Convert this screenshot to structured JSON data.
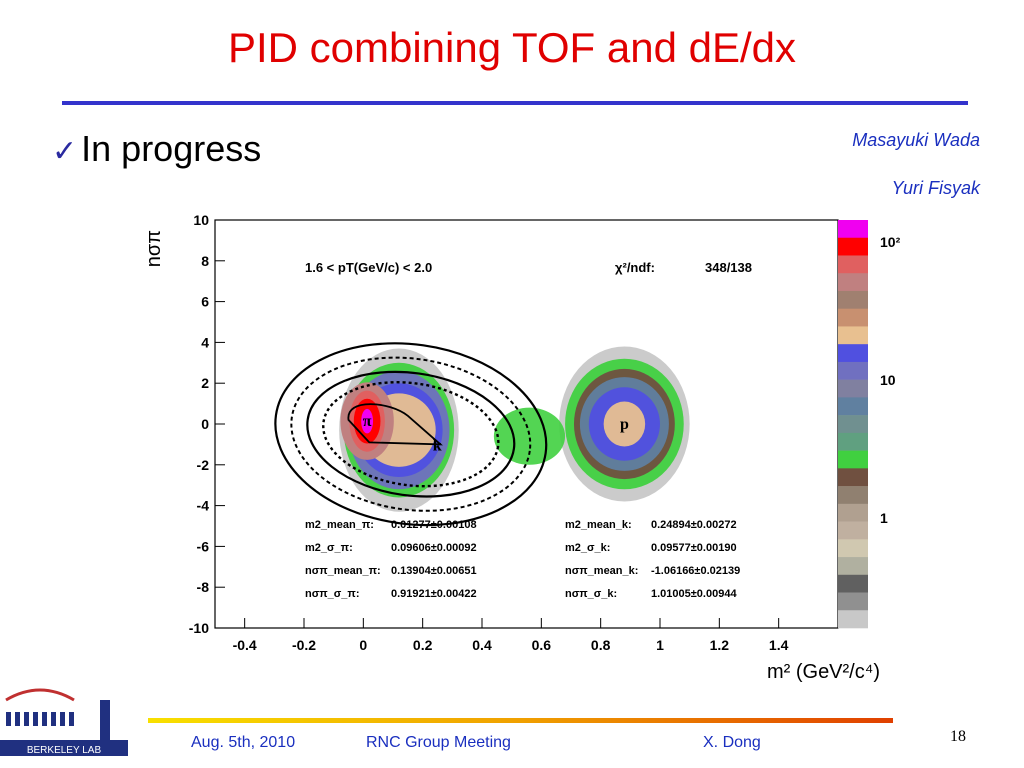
{
  "title": "PID combining TOF and dE/dx",
  "bullet": {
    "check": "✓",
    "text": "In progress"
  },
  "authors": [
    "Masayuki Wada",
    "Yuri Fisyak"
  ],
  "footer": {
    "date": "Aug. 5th, 2010",
    "meeting": "RNC Group Meeting",
    "author": "X. Dong",
    "page": "18"
  },
  "logo_text": "BERKELEY LAB",
  "chart_data": {
    "type": "heatmap",
    "title": "",
    "xlabel": "m² (GeV²/c⁴)",
    "ylabel": "nσπ",
    "xlim": [
      -0.5,
      1.6
    ],
    "ylim": [
      -10,
      10
    ],
    "x_ticks": [
      "-0.4",
      "-0.2",
      "0",
      "0.2",
      "0.4",
      "0.6",
      "0.8",
      "1",
      "1.2",
      "1.4"
    ],
    "x_tick_values": [
      -0.4,
      -0.2,
      0,
      0.2,
      0.4,
      0.6,
      0.8,
      1,
      1.2,
      1.4
    ],
    "y_ticks": [
      "10",
      "8",
      "6",
      "4",
      "2",
      "0",
      "-2",
      "-4",
      "-6",
      "-8",
      "-10"
    ],
    "y_tick_values": [
      10,
      8,
      6,
      4,
      2,
      0,
      -2,
      -4,
      -6,
      -8,
      -10
    ],
    "colorbar_labels": [
      "10²",
      "10",
      "1"
    ],
    "range_label": "1.6 < pT(GeV/c) < 2.0",
    "chi2_label": "χ²/ndf:",
    "chi2_value": "348/138",
    "peaks": [
      {
        "label": "π",
        "x": 0.01277,
        "y": 0.13904
      },
      {
        "label": "k",
        "x": 0.24894,
        "y": -1.06166
      },
      {
        "label": "p",
        "x": 0.88,
        "y": 0.0
      }
    ],
    "fit_params": [
      {
        "name": "m2_mean_π:",
        "value": "0.01277±0.00108"
      },
      {
        "name": "m2_σ_π:",
        "value": "0.09606±0.00092"
      },
      {
        "name": "nσπ_mean_π:",
        "value": "0.13904±0.00651"
      },
      {
        "name": "nσπ_σ_π:",
        "value": "0.91921±0.00422"
      },
      {
        "name": "m2_mean_k:",
        "value": "0.24894±0.00272"
      },
      {
        "name": "m2_σ_k:",
        "value": "0.09577±0.00190"
      },
      {
        "name": "nσπ_mean_k:",
        "value": "-1.06166±0.02139"
      },
      {
        "name": "nσπ_σ_k:",
        "value": "1.01005±0.00944"
      }
    ],
    "colors": [
      "#f000f0",
      "#ff0000",
      "#e06060",
      "#c08080",
      "#a08070",
      "#c89070",
      "#e8c090",
      "#5050e0",
      "#7070c0",
      "#8080a0",
      "#6080a0",
      "#709090",
      "#60a080",
      "#40d040",
      "#705040",
      "#908070",
      "#b0a090",
      "#c0b0a0",
      "#d0c8b0",
      "#b0b0a0",
      "#606060",
      "#909090",
      "#c8c8c8"
    ]
  }
}
